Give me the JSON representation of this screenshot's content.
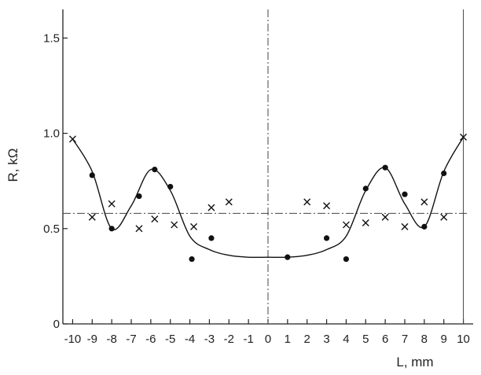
{
  "chart_data": {
    "type": "scatter",
    "title": "",
    "xlabel": "L, mm",
    "ylabel": "R, kΩ",
    "xlim": [
      -10.5,
      10.5
    ],
    "ylim": [
      0,
      1.65
    ],
    "x_ticks": [
      -10,
      -9,
      -8,
      -7,
      -6,
      -5,
      -4,
      -3,
      -2,
      -1,
      0,
      1,
      2,
      3,
      4,
      5,
      6,
      7,
      8,
      9,
      10
    ],
    "y_ticks": [
      0,
      0.5,
      1.0,
      1.5
    ],
    "x_tick_labels": [
      "-10",
      "-9",
      "-8",
      "-7",
      "-6",
      "-5",
      "-4",
      "-3",
      "-2",
      "-1",
      "0",
      "1",
      "2",
      "3",
      "4",
      "5",
      "6",
      "7",
      "8",
      "9",
      "10"
    ],
    "y_tick_labels": [
      "0",
      "0.5",
      "1.0",
      "1.5"
    ],
    "grid": false,
    "reference_lines": {
      "horizontal_y": 0.58,
      "vertical_x": [
        0,
        10
      ]
    },
    "series": [
      {
        "marker": "dot",
        "points": [
          {
            "x": -9,
            "y": 0.78
          },
          {
            "x": -8,
            "y": 0.5
          },
          {
            "x": -6.6,
            "y": 0.67
          },
          {
            "x": -5.8,
            "y": 0.81
          },
          {
            "x": -5,
            "y": 0.72
          },
          {
            "x": -3.9,
            "y": 0.34
          },
          {
            "x": -2.9,
            "y": 0.45
          },
          {
            "x": 1,
            "y": 0.35
          },
          {
            "x": 3,
            "y": 0.45
          },
          {
            "x": 4,
            "y": 0.34
          },
          {
            "x": 5,
            "y": 0.71
          },
          {
            "x": 6,
            "y": 0.82
          },
          {
            "x": 7,
            "y": 0.68
          },
          {
            "x": 8,
            "y": 0.51
          },
          {
            "x": 9,
            "y": 0.79
          }
        ]
      },
      {
        "marker": "cross",
        "points": [
          {
            "x": -10,
            "y": 0.97
          },
          {
            "x": -9,
            "y": 0.56
          },
          {
            "x": -8,
            "y": 0.63
          },
          {
            "x": -6.6,
            "y": 0.5
          },
          {
            "x": -5.8,
            "y": 0.55
          },
          {
            "x": -4.8,
            "y": 0.52
          },
          {
            "x": -3.8,
            "y": 0.51
          },
          {
            "x": -2.9,
            "y": 0.61
          },
          {
            "x": -2,
            "y": 0.64
          },
          {
            "x": 2,
            "y": 0.64
          },
          {
            "x": 3,
            "y": 0.62
          },
          {
            "x": 4,
            "y": 0.52
          },
          {
            "x": 5,
            "y": 0.53
          },
          {
            "x": 6,
            "y": 0.56
          },
          {
            "x": 7,
            "y": 0.51
          },
          {
            "x": 8,
            "y": 0.64
          },
          {
            "x": 9,
            "y": 0.56
          },
          {
            "x": 10,
            "y": 0.98
          }
        ]
      },
      {
        "marker": "fit-curve",
        "points": [
          {
            "x": -10,
            "y": 0.97
          },
          {
            "x": -9,
            "y": 0.8
          },
          {
            "x": -8,
            "y": 0.5
          },
          {
            "x": -7,
            "y": 0.62
          },
          {
            "x": -6,
            "y": 0.81
          },
          {
            "x": -5,
            "y": 0.7
          },
          {
            "x": -4,
            "y": 0.46
          },
          {
            "x": -3,
            "y": 0.39
          },
          {
            "x": -2,
            "y": 0.36
          },
          {
            "x": -1,
            "y": 0.35
          },
          {
            "x": 0,
            "y": 0.35
          },
          {
            "x": 1,
            "y": 0.35
          },
          {
            "x": 2,
            "y": 0.36
          },
          {
            "x": 3,
            "y": 0.39
          },
          {
            "x": 4,
            "y": 0.46
          },
          {
            "x": 5,
            "y": 0.7
          },
          {
            "x": 6,
            "y": 0.82
          },
          {
            "x": 7,
            "y": 0.63
          },
          {
            "x": 8,
            "y": 0.51
          },
          {
            "x": 9,
            "y": 0.8
          },
          {
            "x": 10,
            "y": 0.98
          }
        ]
      }
    ]
  }
}
